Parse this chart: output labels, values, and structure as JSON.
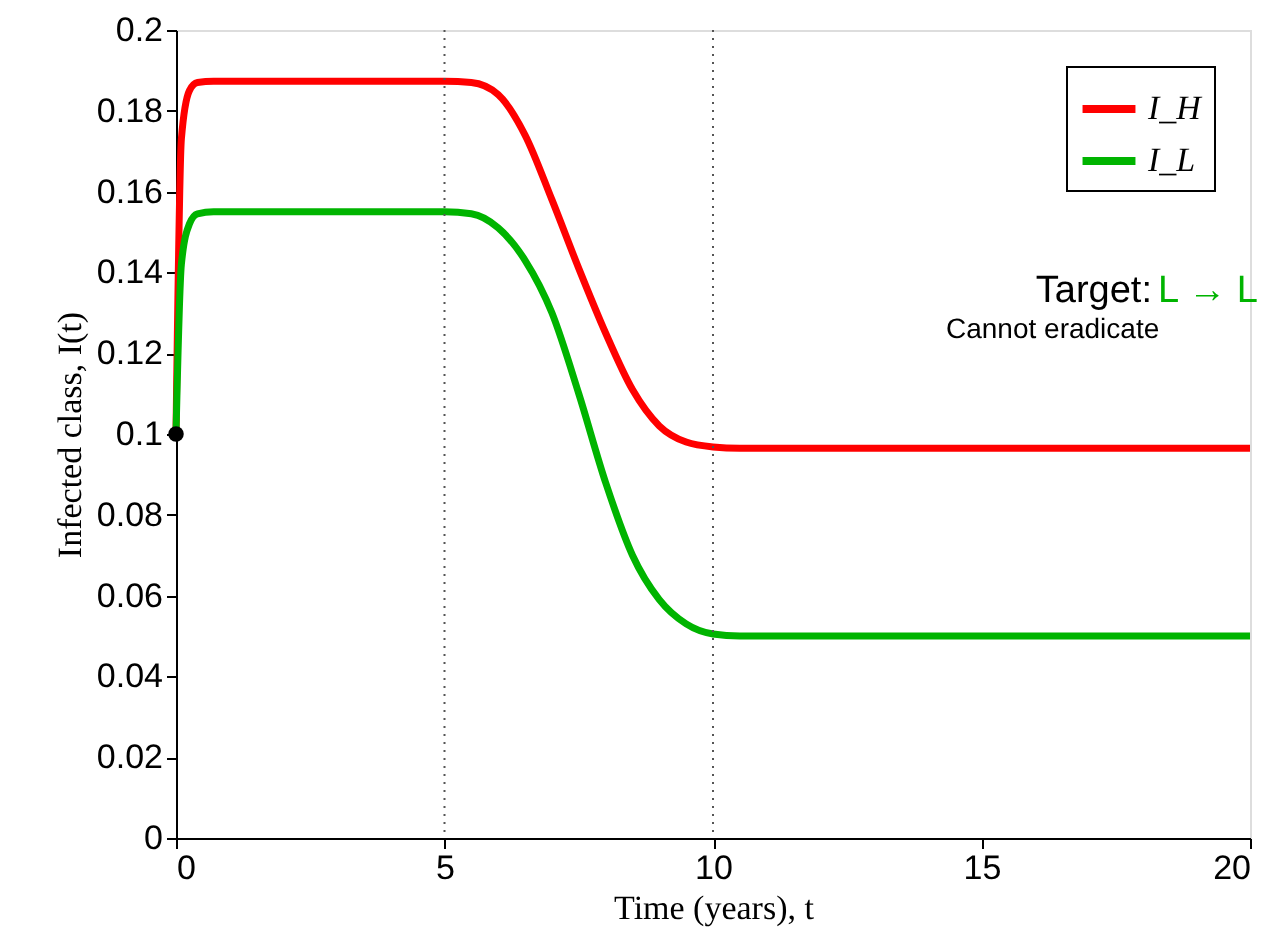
{
  "chart_data": {
    "type": "line",
    "xlabel": "Time (years), t",
    "ylabel": "Infected class, I(t)",
    "xlim": [
      0,
      20
    ],
    "ylim": [
      0,
      0.2
    ],
    "xticks": [
      0,
      5,
      10,
      15,
      20
    ],
    "yticks": [
      0,
      0.02,
      0.04,
      0.06,
      0.08,
      0.1,
      0.12,
      0.14,
      0.16,
      0.18,
      0.2
    ],
    "grid": false,
    "legend": "top right",
    "marker": "none",
    "line_style": "solid",
    "series": [
      {
        "name": "I_H",
        "color": "#ff0000",
        "x": [
          0,
          0.1,
          0.25,
          0.4,
          0.7,
          1,
          2,
          3,
          4,
          5,
          5.5,
          6,
          6.5,
          7,
          7.5,
          8,
          8.5,
          9,
          9.5,
          10,
          10.5,
          12,
          15,
          20
        ],
        "values": [
          0.1,
          0.173,
          0.185,
          0.187,
          0.1873,
          0.1873,
          0.1873,
          0.1873,
          0.1873,
          0.1873,
          0.187,
          0.184,
          0.174,
          0.158,
          0.141,
          0.125,
          0.111,
          0.102,
          0.098,
          0.0968,
          0.0965,
          0.0965,
          0.0965,
          0.0965
        ]
      },
      {
        "name": "I_L",
        "color": "#00b400",
        "x": [
          0,
          0.1,
          0.25,
          0.4,
          0.7,
          1,
          2,
          3,
          4,
          5,
          5.5,
          6,
          6.5,
          7,
          7.5,
          8,
          8.5,
          9,
          9.5,
          10,
          10.5,
          12,
          15,
          20
        ],
        "values": [
          0.1,
          0.142,
          0.152,
          0.1545,
          0.155,
          0.155,
          0.155,
          0.155,
          0.155,
          0.155,
          0.1545,
          0.151,
          0.143,
          0.13,
          0.11,
          0.088,
          0.07,
          0.059,
          0.053,
          0.0505,
          0.05,
          0.05,
          0.05,
          0.05
        ]
      },
      {
        "type": "scatter",
        "marker": "circle",
        "color": "#000000",
        "x": [
          0
        ],
        "values": [
          0.1
        ]
      }
    ],
    "ref_lines": [
      {
        "axis": "x",
        "value": 5,
        "color": "#555555",
        "line_style": "dotted"
      },
      {
        "axis": "x",
        "value": 10,
        "color": "#555555",
        "line_style": "dotted"
      }
    ],
    "annotations": [
      "Target:",
      "L → L",
      "Cannot eradicate"
    ]
  }
}
